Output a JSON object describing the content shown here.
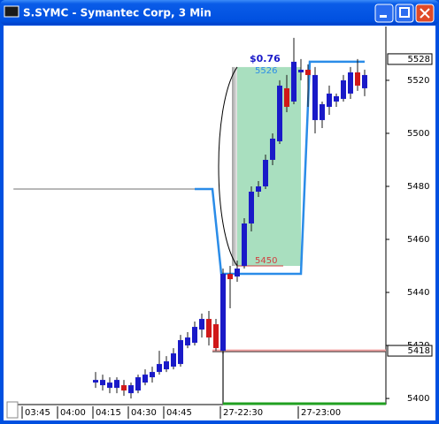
{
  "chart_data": {
    "type": "candlestick",
    "title": "S.SYMC - Symantec Corp, 3 Min",
    "categories": [
      "03:45",
      null,
      null,
      null,
      null,
      "04:00",
      null,
      null,
      null,
      null,
      "04:15",
      null,
      null,
      null,
      null,
      "04:30",
      null,
      null,
      null,
      null,
      "04:45",
      null,
      null,
      null,
      null,
      null,
      null,
      null,
      "27-22:30",
      null,
      null,
      null,
      null,
      null,
      null,
      null,
      null,
      null,
      null,
      "27-23:00",
      null,
      null,
      null,
      null,
      null,
      null,
      null,
      null,
      null
    ],
    "open": [
      null,
      null,
      null,
      null,
      null,
      null,
      null,
      null,
      null,
      null,
      5406,
      5405,
      5404,
      5404,
      5405,
      5402,
      5403,
      5406,
      5408,
      5410,
      5411,
      5412,
      5413,
      5420,
      5421,
      5426,
      5430,
      5428,
      5418,
      5447,
      5446,
      5450,
      5466,
      5478,
      5480,
      5490,
      5497,
      5517,
      5512,
      5523,
      5524,
      5505,
      5505,
      5510,
      5512,
      5513,
      5515,
      5523,
      5517
    ],
    "high": [
      null,
      null,
      null,
      null,
      null,
      null,
      null,
      null,
      null,
      null,
      5410,
      5409,
      5408,
      5408,
      5407,
      5406,
      5409,
      5411,
      5412,
      5418,
      5416,
      5419,
      5424,
      5425,
      5429,
      5432,
      5433,
      5430,
      5449,
      5450,
      5452,
      5468,
      5480,
      5482,
      5492,
      5500,
      5520,
      5522,
      5536,
      5528,
      5526,
      5525,
      5512,
      5518,
      5515,
      5522,
      5525,
      5528,
      5524
    ],
    "low": [
      null,
      null,
      null,
      null,
      null,
      null,
      null,
      null,
      null,
      null,
      5404,
      5403,
      5402,
      5402,
      5401,
      5400,
      5402,
      5405,
      5406,
      5409,
      5410,
      5411,
      5412,
      5419,
      5420,
      5423,
      5420,
      5418,
      5417,
      5434,
      5444,
      5449,
      5463,
      5476,
      5479,
      5488,
      5496,
      5508,
      5511,
      5520,
      5510,
      5500,
      5502,
      5507,
      5510,
      5512,
      5513,
      5516,
      5514
    ],
    "close": [
      null,
      null,
      null,
      null,
      null,
      null,
      null,
      null,
      null,
      null,
      5407,
      5407,
      5406,
      5407,
      5403,
      5405,
      5408,
      5409,
      5410,
      5413,
      5414,
      5417,
      5422,
      5423,
      5427,
      5430,
      5423,
      5419,
      5447,
      5445,
      5449,
      5466,
      5478,
      5480,
      5490,
      5498,
      5518,
      5510,
      5527,
      5524,
      5522,
      5522,
      5511,
      5515,
      5514,
      5520,
      5523,
      5518,
      5522
    ],
    "up_color": "#1a1ac8",
    "down_color": "#d01818",
    "ylim": [
      5397.7,
      5540.3
    ],
    "yticks": [
      5400,
      5420,
      5440,
      5460,
      5480,
      5500,
      5520
    ],
    "price_markers": [
      5528,
      5418
    ],
    "grid": false,
    "overlays": {
      "prior_level": {
        "x": [
          -1.6,
          24
        ],
        "values": [
          5479,
          5479
        ],
        "color": "#b8b8b8"
      },
      "channel": {
        "x": [
          24,
          26.5,
          27.75,
          39,
          40.25,
          48
        ],
        "values": [
          5479,
          5479,
          5447,
          5447,
          5527,
          5527
        ],
        "color": "#2a8ce8"
      },
      "support": {
        "x": [
          26.5,
          51
        ],
        "values": [
          5418,
          5418
        ],
        "color": "#f0a0a0"
      },
      "target_box": {
        "x": [
          30,
          39
        ],
        "values": [
          5450,
          5525
        ],
        "color": "#9ad9b4"
      },
      "gain_label": "$0.76",
      "top_label": "5526",
      "bottom_label": "5450"
    }
  }
}
